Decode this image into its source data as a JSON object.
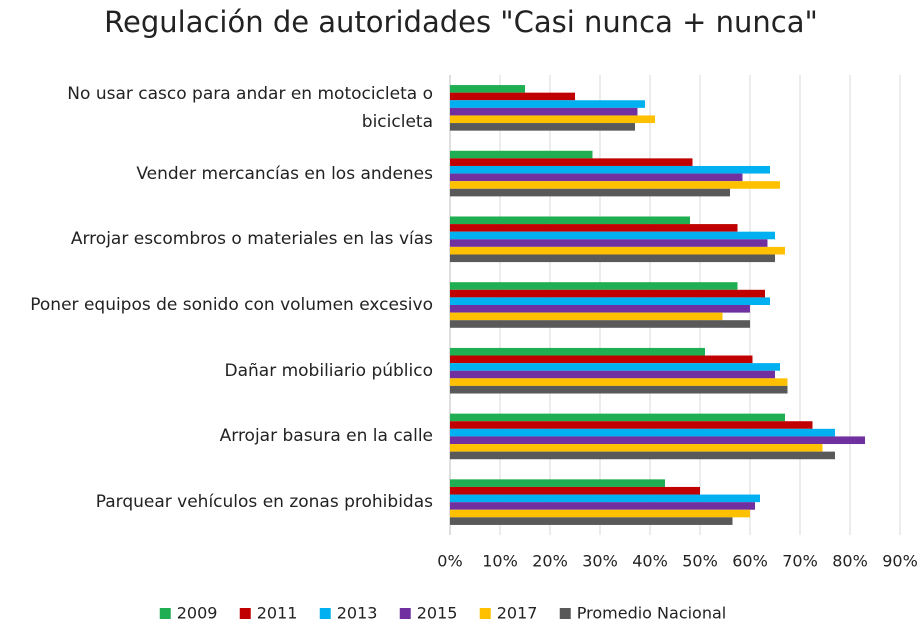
{
  "chart_data": {
    "type": "barh",
    "title": "Regulación de autoridades \"Casi nunca + nunca\"",
    "categories": [
      "No usar casco para andar en motocicleta o bicicleta",
      "Vender mercancías en los andenes",
      "Arrojar escombros o materiales en las vías",
      "Poner equipos de sonido con volumen excesivo",
      "Dañar mobiliario público",
      "Arrojar basura en la calle",
      "Parquear vehículos en zonas prohibidas"
    ],
    "series": [
      {
        "name": "2009",
        "color": "#1fae52",
        "values": [
          15,
          28.5,
          48,
          57.5,
          51,
          67,
          43
        ]
      },
      {
        "name": "2011",
        "color": "#c00000",
        "values": [
          25,
          48.5,
          57.5,
          63,
          60.5,
          72.5,
          50
        ]
      },
      {
        "name": "2013",
        "color": "#00b0f0",
        "values": [
          39,
          64,
          65,
          64,
          66,
          77,
          62
        ]
      },
      {
        "name": "2015",
        "color": "#7030a0",
        "values": [
          37.5,
          58.5,
          63.5,
          60,
          65,
          83,
          61
        ]
      },
      {
        "name": "2017",
        "color": "#ffc000",
        "values": [
          41,
          66,
          67,
          54.5,
          67.5,
          74.5,
          60
        ]
      },
      {
        "name": "Promedio Nacional",
        "color": "#595959",
        "values": [
          37,
          56,
          65,
          60,
          67.5,
          77,
          56.5
        ]
      }
    ],
    "xlim": [
      0,
      90
    ],
    "xticks": [
      {
        "value": 0,
        "label": "0%"
      },
      {
        "value": 10,
        "label": "10%"
      },
      {
        "value": 20,
        "label": "20%"
      },
      {
        "value": 30,
        "label": "30%"
      },
      {
        "value": 40,
        "label": "40%"
      },
      {
        "value": 50,
        "label": "50%"
      },
      {
        "value": 60,
        "label": "60%"
      },
      {
        "value": 70,
        "label": "70%"
      },
      {
        "value": 80,
        "label": "80%"
      },
      {
        "value": 90,
        "label": "90%"
      }
    ],
    "grid": true
  }
}
